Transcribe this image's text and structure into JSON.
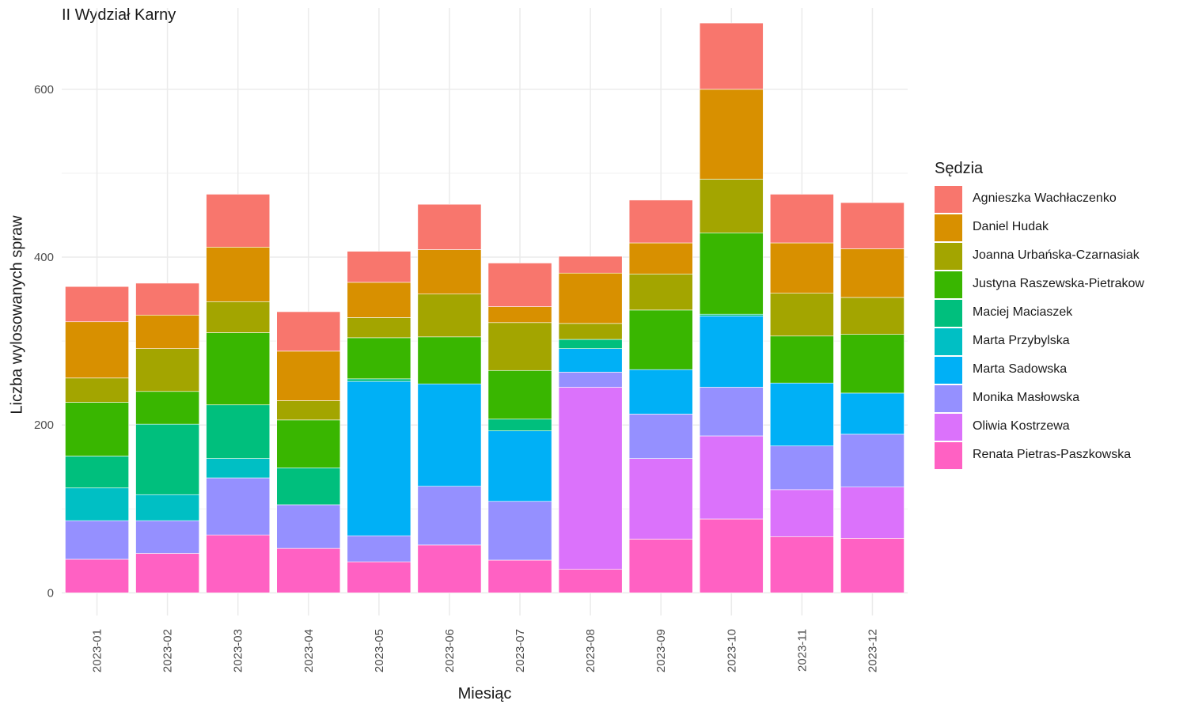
{
  "title": "II Wydział Karny",
  "legend_title": "Sędzia",
  "chart_data": {
    "type": "bar",
    "stacked": true,
    "title": "II Wydział Karny",
    "xlabel": "Miesiąc",
    "ylabel": "Liczba wylosowanych spraw",
    "ylim": [
      -27,
      697
    ],
    "yticks": [
      0,
      200,
      400,
      600
    ],
    "grid": true,
    "legend_position": "right",
    "categories": [
      "2023-01",
      "2023-02",
      "2023-03",
      "2023-04",
      "2023-05",
      "2023-06",
      "2023-07",
      "2023-08",
      "2023-09",
      "2023-10",
      "2023-11",
      "2023-12"
    ],
    "series": [
      {
        "name": "Renata Pietras-Paszkowska",
        "color": "#FF61C3",
        "values": [
          40,
          47,
          69,
          53,
          37,
          57,
          39,
          28,
          64,
          88,
          67,
          65
        ]
      },
      {
        "name": "Oliwia Kostrzewa",
        "color": "#DB72FB",
        "values": [
          0,
          0,
          0,
          0,
          0,
          0,
          0,
          217,
          96,
          99,
          56,
          61
        ]
      },
      {
        "name": "Monika Masłowska",
        "color": "#9590FF",
        "values": [
          46,
          39,
          68,
          52,
          31,
          70,
          70,
          18,
          53,
          58,
          52,
          63
        ]
      },
      {
        "name": "Marta Sadowska",
        "color": "#00B0F6",
        "values": [
          0,
          0,
          0,
          0,
          184,
          122,
          84,
          28,
          53,
          85,
          75,
          49
        ]
      },
      {
        "name": "Marta Przybylska",
        "color": "#00BFC4",
        "values": [
          39,
          31,
          23,
          0,
          0,
          0,
          0,
          0,
          0,
          0,
          0,
          0
        ]
      },
      {
        "name": "Maciej Maciaszek",
        "color": "#00BF7D",
        "values": [
          38,
          84,
          64,
          44,
          3,
          0,
          14,
          11,
          0,
          2,
          0,
          0
        ]
      },
      {
        "name": "Justyna Raszewska-Pietrakow",
        "color": "#39B600",
        "values": [
          64,
          39,
          86,
          57,
          49,
          56,
          58,
          0,
          71,
          97,
          56,
          70
        ]
      },
      {
        "name": "Joanna Urbańska-Czarnasiak",
        "color": "#A3A500",
        "values": [
          29,
          51,
          37,
          23,
          24,
          51,
          57,
          19,
          43,
          64,
          51,
          44
        ]
      },
      {
        "name": "Daniel Hudak",
        "color": "#D89000",
        "values": [
          67,
          40,
          65,
          59,
          42,
          53,
          19,
          60,
          37,
          107,
          60,
          58
        ]
      },
      {
        "name": "Agnieszka Wachłaczenko",
        "color": "#F8766D",
        "values": [
          42,
          38,
          63,
          47,
          37,
          54,
          52,
          20,
          51,
          79,
          58,
          55
        ]
      }
    ]
  }
}
